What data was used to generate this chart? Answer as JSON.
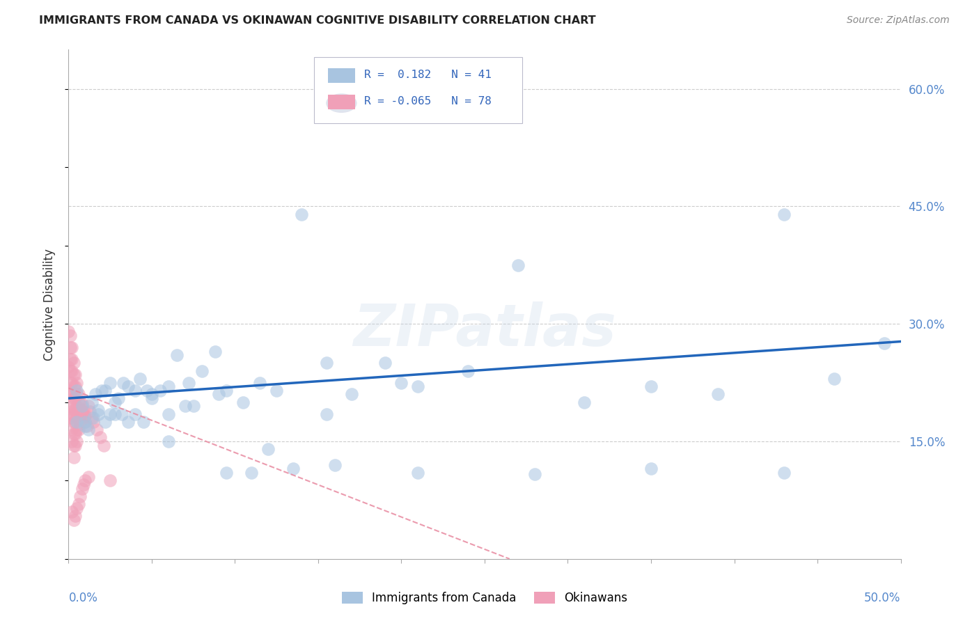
{
  "title": "IMMIGRANTS FROM CANADA VS OKINAWAN COGNITIVE DISABILITY CORRELATION CHART",
  "source": "Source: ZipAtlas.com",
  "ylabel": "Cognitive Disability",
  "xlim": [
    0.0,
    0.5
  ],
  "ylim": [
    0.0,
    0.65
  ],
  "right_ytick_vals": [
    0.15,
    0.3,
    0.45,
    0.6
  ],
  "right_ytick_labels": [
    "15.0%",
    "30.0%",
    "45.0%",
    "60.0%"
  ],
  "watermark": "ZIPatlas",
  "blue_scatter_color": "#a8c4e0",
  "pink_scatter_color": "#f0a0b8",
  "blue_line_color": "#2266bb",
  "pink_line_color": "#e88aa0",
  "grid_color": "#cccccc",
  "canada_x": [
    0.005,
    0.008,
    0.01,
    0.012,
    0.014,
    0.016,
    0.018,
    0.02,
    0.022,
    0.025,
    0.028,
    0.03,
    0.033,
    0.036,
    0.04,
    0.043,
    0.047,
    0.05,
    0.055,
    0.06,
    0.065,
    0.072,
    0.08,
    0.088,
    0.095,
    0.105,
    0.115,
    0.125,
    0.14,
    0.155,
    0.17,
    0.19,
    0.21,
    0.24,
    0.27,
    0.31,
    0.35,
    0.39,
    0.43,
    0.46,
    0.49
  ],
  "canada_y": [
    0.215,
    0.195,
    0.175,
    0.165,
    0.2,
    0.21,
    0.19,
    0.215,
    0.215,
    0.225,
    0.2,
    0.205,
    0.225,
    0.22,
    0.215,
    0.23,
    0.215,
    0.21,
    0.215,
    0.22,
    0.26,
    0.225,
    0.24,
    0.265,
    0.215,
    0.2,
    0.225,
    0.215,
    0.44,
    0.25,
    0.21,
    0.25,
    0.22,
    0.24,
    0.375,
    0.2,
    0.22,
    0.21,
    0.44,
    0.23,
    0.275
  ],
  "canada_low_x": [
    0.005,
    0.01,
    0.015,
    0.018,
    0.022,
    0.025,
    0.028,
    0.032,
    0.036,
    0.04,
    0.045,
    0.05,
    0.06,
    0.07,
    0.09,
    0.11,
    0.135,
    0.16,
    0.21,
    0.28,
    0.35,
    0.43,
    0.2,
    0.155,
    0.12,
    0.095,
    0.075,
    0.06
  ],
  "canada_low_y": [
    0.175,
    0.17,
    0.18,
    0.185,
    0.175,
    0.185,
    0.185,
    0.185,
    0.175,
    0.185,
    0.175,
    0.205,
    0.185,
    0.195,
    0.21,
    0.11,
    0.115,
    0.12,
    0.11,
    0.108,
    0.115,
    0.11,
    0.225,
    0.185,
    0.14,
    0.11,
    0.195,
    0.15
  ],
  "okinawa_x": [
    0.0,
    0.0,
    0.0,
    0.0,
    0.001,
    0.001,
    0.001,
    0.001,
    0.001,
    0.001,
    0.001,
    0.001,
    0.002,
    0.002,
    0.002,
    0.002,
    0.002,
    0.002,
    0.002,
    0.002,
    0.002,
    0.002,
    0.003,
    0.003,
    0.003,
    0.003,
    0.003,
    0.003,
    0.003,
    0.003,
    0.003,
    0.003,
    0.004,
    0.004,
    0.004,
    0.004,
    0.004,
    0.004,
    0.004,
    0.004,
    0.005,
    0.005,
    0.005,
    0.005,
    0.005,
    0.005,
    0.005,
    0.006,
    0.006,
    0.006,
    0.006,
    0.006,
    0.006,
    0.007,
    0.007,
    0.007,
    0.007,
    0.007,
    0.008,
    0.008,
    0.008,
    0.008,
    0.009,
    0.009,
    0.009,
    0.01,
    0.01,
    0.01,
    0.011,
    0.012,
    0.012,
    0.013,
    0.014,
    0.015,
    0.017,
    0.019,
    0.021,
    0.025
  ],
  "okinawa_y": [
    0.29,
    0.245,
    0.215,
    0.185,
    0.285,
    0.27,
    0.255,
    0.24,
    0.225,
    0.21,
    0.195,
    0.18,
    0.27,
    0.255,
    0.24,
    0.225,
    0.21,
    0.195,
    0.18,
    0.165,
    0.15,
    0.06,
    0.25,
    0.235,
    0.22,
    0.205,
    0.19,
    0.175,
    0.16,
    0.145,
    0.13,
    0.05,
    0.235,
    0.22,
    0.205,
    0.19,
    0.175,
    0.16,
    0.145,
    0.055,
    0.225,
    0.21,
    0.195,
    0.18,
    0.165,
    0.15,
    0.065,
    0.21,
    0.2,
    0.19,
    0.178,
    0.165,
    0.07,
    0.2,
    0.192,
    0.183,
    0.172,
    0.08,
    0.198,
    0.188,
    0.178,
    0.09,
    0.19,
    0.182,
    0.095,
    0.183,
    0.175,
    0.1,
    0.17,
    0.195,
    0.105,
    0.188,
    0.18,
    0.175,
    0.165,
    0.155,
    0.145,
    0.1
  ]
}
